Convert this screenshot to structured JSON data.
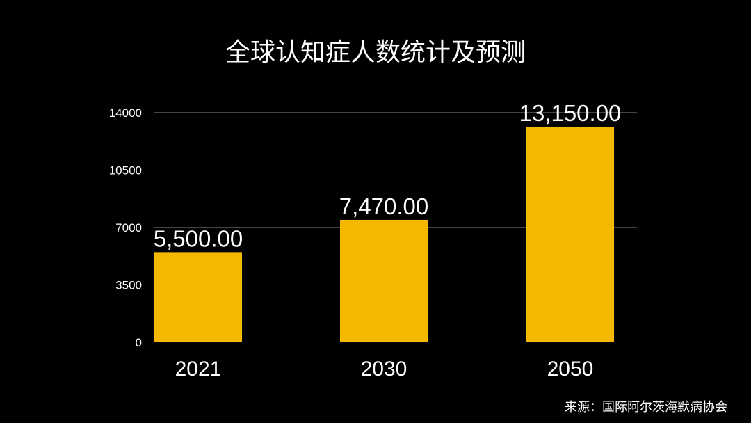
{
  "chart_data": {
    "type": "bar",
    "title": "全球认知症人数统计及预测",
    "categories": [
      "2021",
      "2030",
      "2050"
    ],
    "values": [
      5500,
      7470,
      13150
    ],
    "data_labels": [
      "5,500.00",
      "7,470.00",
      "13,150.00"
    ],
    "yticks": [
      0,
      3500,
      7000,
      10500,
      14000
    ],
    "ylim": [
      0,
      14000
    ],
    "grid": true,
    "legend": "none",
    "xlabel": "",
    "ylabel": "",
    "colors": {
      "bar": "#F5B800",
      "gridline": "#8a8a8a",
      "background": "#000000",
      "text": "#ffffff"
    }
  },
  "source": "来源：国际阿尔茨海默病协会"
}
